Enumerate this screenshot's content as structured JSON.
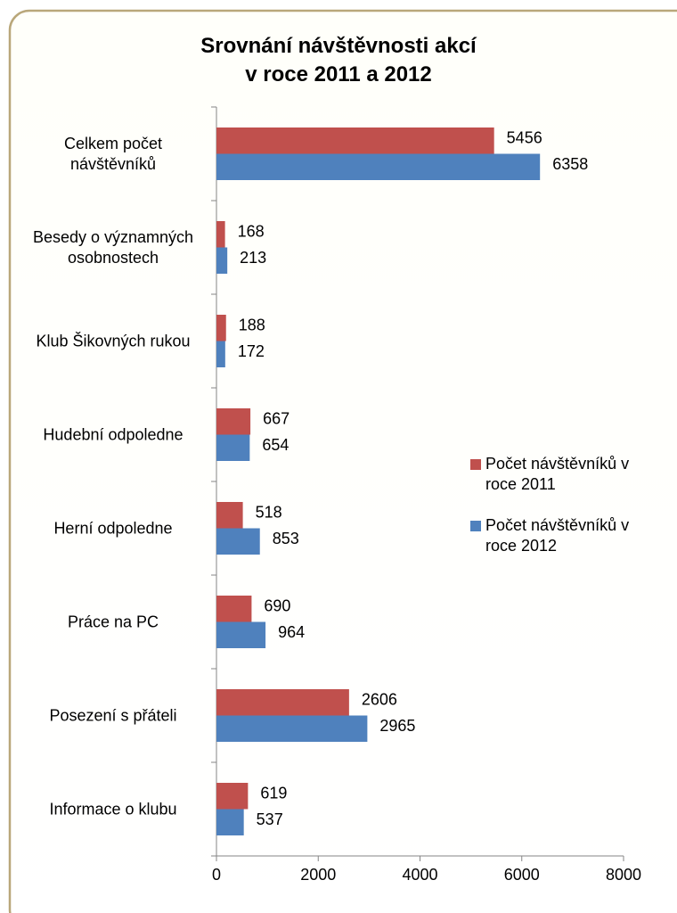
{
  "chart_data": {
    "type": "hbar",
    "title": [
      "Srovnání návštěvnosti akcí",
      "v roce 2011 a 2012"
    ],
    "categories": [
      "Celkem počet návštěvníků",
      "Besedy o významných osobnostech",
      "Klub Šikovných rukou",
      "Hudební odpoledne",
      "Herní odpoledne",
      "Práce na PC",
      "Posezení s přáteli",
      "Informace o klubu"
    ],
    "series": [
      {
        "name": "Počet návštěvníků v roce 2011",
        "color": "#c0504d",
        "values": [
          5456,
          168,
          188,
          667,
          518,
          690,
          2606,
          619
        ]
      },
      {
        "name": "Počet návštěvníků v roce 2012",
        "color": "#4f81bd",
        "values": [
          6358,
          213,
          172,
          654,
          853,
          964,
          2965,
          537
        ]
      }
    ],
    "xlim": [
      0,
      8000
    ],
    "xticks": [
      0,
      2000,
      4000,
      6000,
      8000
    ],
    "legend": "right"
  }
}
